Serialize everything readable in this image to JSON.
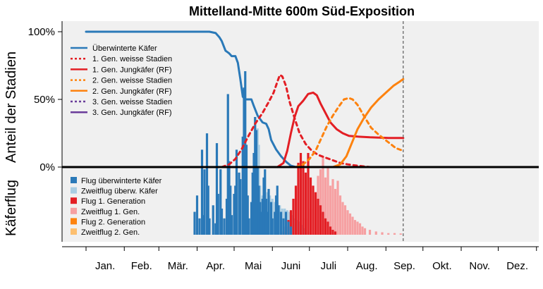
{
  "chart_data": {
    "type": "line",
    "title": "Mittelland-Mitte 600m Süd-Exposition",
    "colors": {
      "blue": "#2a79b8",
      "lightblue": "#a9cde2",
      "red": "#e31e24",
      "pink": "#f6a0a2",
      "orange": "#fd820e",
      "lightorange": "#fdbf6f",
      "purple": "#6a3d9a",
      "plotbg": "#f0f0f0",
      "vline": "#666666"
    },
    "months": [
      "Jan.",
      "Feb.",
      "Mär.",
      "Apr.",
      "Mai",
      "Juni",
      "Juli",
      "Aug.",
      "Sep.",
      "Okt.",
      "Nov.",
      "Dez."
    ],
    "upper": {
      "ylabel": "Anteil der Stadien",
      "yticks": [
        "100%",
        "50%",
        "0%"
      ],
      "ylim": [
        0,
        1.1
      ],
      "vline_day": 257,
      "series": [
        {
          "name": "Überwinterte Käfer",
          "color": "blue",
          "dash": false,
          "points": [
            [
              0,
              1
            ],
            [
              100,
              1
            ],
            [
              105,
              0.99
            ],
            [
              108,
              0.96
            ],
            [
              110,
              0.93
            ],
            [
              113,
              0.86
            ],
            [
              116,
              0.84
            ],
            [
              118,
              0.82
            ],
            [
              121,
              0.82
            ],
            [
              123,
              0.77
            ],
            [
              125,
              0.65
            ],
            [
              127,
              0.52
            ],
            [
              129,
              0.5
            ],
            [
              134,
              0.5
            ],
            [
              136,
              0.45
            ],
            [
              139,
              0.38
            ],
            [
              143,
              0.33
            ],
            [
              146,
              0.32
            ],
            [
              148,
              0.28
            ],
            [
              150,
              0.2
            ],
            [
              154,
              0.13
            ],
            [
              158,
              0.08
            ],
            [
              162,
              0.04
            ],
            [
              166,
              0.01
            ],
            [
              170,
              0
            ]
          ]
        },
        {
          "name": "1. Gen. weisse Stadien",
          "color": "red",
          "dash": true,
          "points": [
            [
              110,
              0
            ],
            [
              116,
              0.02
            ],
            [
              121,
              0.06
            ],
            [
              126,
              0.13
            ],
            [
              131,
              0.22
            ],
            [
              137,
              0.32
            ],
            [
              143,
              0.4
            ],
            [
              148,
              0.48
            ],
            [
              152,
              0.55
            ],
            [
              155,
              0.63
            ],
            [
              157,
              0.68
            ],
            [
              159,
              0.67
            ],
            [
              162,
              0.6
            ],
            [
              165,
              0.48
            ],
            [
              169,
              0.36
            ],
            [
              173,
              0.25
            ],
            [
              178,
              0.17
            ],
            [
              183,
              0.12
            ],
            [
              188,
              0.09
            ],
            [
              194,
              0.07
            ],
            [
              200,
              0.05
            ],
            [
              206,
              0.03
            ],
            [
              212,
              0.02
            ],
            [
              220,
              0.01
            ],
            [
              230,
              0
            ]
          ]
        },
        {
          "name": "1. Gen. Jungkäfer (RF)",
          "color": "red",
          "dash": false,
          "points": [
            [
              155,
              0
            ],
            [
              160,
              0.03
            ],
            [
              163,
              0.12
            ],
            [
              166,
              0.25
            ],
            [
              169,
              0.37
            ],
            [
              172,
              0.45
            ],
            [
              176,
              0.49
            ],
            [
              180,
              0.54
            ],
            [
              184,
              0.55
            ],
            [
              187,
              0.53
            ],
            [
              190,
              0.47
            ],
            [
              194,
              0.4
            ],
            [
              198,
              0.33
            ],
            [
              203,
              0.28
            ],
            [
              208,
              0.25
            ],
            [
              213,
              0.23
            ],
            [
              220,
              0.225
            ],
            [
              230,
              0.22
            ],
            [
              245,
              0.215
            ],
            [
              257,
              0.215
            ]
          ]
        },
        {
          "name": "2. Gen. weisse Stadien",
          "color": "orange",
          "dash": true,
          "points": [
            [
              170,
              0
            ],
            [
              176,
              0.02
            ],
            [
              181,
              0.06
            ],
            [
              186,
              0.12
            ],
            [
              190,
              0.2
            ],
            [
              195,
              0.3
            ],
            [
              200,
              0.38
            ],
            [
              205,
              0.45
            ],
            [
              209,
              0.5
            ],
            [
              213,
              0.51
            ],
            [
              216,
              0.5
            ],
            [
              220,
              0.46
            ],
            [
              225,
              0.38
            ],
            [
              231,
              0.29
            ],
            [
              237,
              0.24
            ],
            [
              244,
              0.19
            ],
            [
              251,
              0.14
            ],
            [
              257,
              0.12
            ]
          ]
        },
        {
          "name": "2. Gen. Jungkäfer (RF)",
          "color": "orange",
          "dash": false,
          "points": [
            [
              200,
              0
            ],
            [
              206,
              0.02
            ],
            [
              211,
              0.08
            ],
            [
              215,
              0.17
            ],
            [
              220,
              0.28
            ],
            [
              225,
              0.36
            ],
            [
              231,
              0.44
            ],
            [
              237,
              0.5
            ],
            [
              243,
              0.55
            ],
            [
              249,
              0.6
            ],
            [
              254,
              0.63
            ],
            [
              257,
              0.65
            ]
          ]
        },
        {
          "name": "3. Gen. weisse Stadien",
          "color": "purple",
          "dash": true,
          "points": []
        },
        {
          "name": "3. Gen. Jungkäfer (RF)",
          "color": "purple",
          "dash": false,
          "points": []
        }
      ]
    },
    "lower": {
      "ylabel": "Käferflug",
      "legend": [
        {
          "name": "Flug überwinterte Käfer",
          "color": "blue"
        },
        {
          "name": "Zweitflug überw. Käfer",
          "color": "lightblue"
        },
        {
          "name": "Flug 1. Generation",
          "color": "red"
        },
        {
          "name": "Zweitflug 1. Gen.",
          "color": "pink"
        },
        {
          "name": "Flug 2. Generation",
          "color": "orange"
        },
        {
          "name": "Zweitflug 2. Gen.",
          "color": "lightorange"
        }
      ],
      "flight_overwintered": [
        [
          88,
          0.14
        ],
        [
          90,
          0.24
        ],
        [
          92,
          0.1
        ],
        [
          94,
          0.52
        ],
        [
          95,
          0.12
        ],
        [
          96,
          0.4
        ],
        [
          98,
          0.62
        ],
        [
          99,
          0.3
        ],
        [
          100,
          0.1
        ],
        [
          103,
          0.18
        ],
        [
          105,
          0.07
        ],
        [
          106,
          0.56
        ],
        [
          107,
          0.25
        ],
        [
          109,
          0.4
        ],
        [
          110,
          0.16
        ],
        [
          112,
          0.1
        ],
        [
          114,
          0.22
        ],
        [
          115,
          0.86
        ],
        [
          116,
          0.45
        ],
        [
          117,
          0.3
        ],
        [
          118,
          0.12
        ],
        [
          120,
          0.25
        ],
        [
          121,
          0.3
        ],
        [
          122,
          0.52
        ],
        [
          124,
          0.38
        ],
        [
          125,
          0.34
        ],
        [
          127,
          0.6
        ],
        [
          128,
          0.9
        ],
        [
          129,
          1.0
        ],
        [
          130,
          0.55
        ],
        [
          131,
          0.24
        ],
        [
          132,
          0.1
        ],
        [
          134,
          0.2
        ],
        [
          135,
          0.38
        ],
        [
          136,
          0.5
        ],
        [
          137,
          0.72
        ],
        [
          138,
          0.64
        ],
        [
          139,
          0.42
        ],
        [
          140,
          0.3
        ],
        [
          141,
          0.2
        ],
        [
          142,
          0.14
        ],
        [
          143,
          0.22
        ],
        [
          144,
          0.35
        ],
        [
          145,
          0.4
        ],
        [
          146,
          0.22
        ],
        [
          147,
          0.14
        ],
        [
          148,
          0.28
        ],
        [
          150,
          0.2
        ],
        [
          151,
          0.1
        ],
        [
          153,
          0.14
        ],
        [
          154,
          0.24
        ],
        [
          155,
          0.3
        ],
        [
          156,
          0.18
        ],
        [
          158,
          0.14
        ],
        [
          160,
          0.1
        ],
        [
          162,
          0.14
        ],
        [
          164,
          0.08
        ],
        [
          166,
          0.05
        ]
      ],
      "flight_gen1": [
        [
          160,
          0.02
        ],
        [
          162,
          0.05
        ],
        [
          164,
          0.09
        ],
        [
          166,
          0.15
        ],
        [
          168,
          0.22
        ],
        [
          170,
          0.3
        ],
        [
          172,
          0.44
        ],
        [
          174,
          0.5
        ],
        [
          176,
          0.45
        ],
        [
          178,
          0.38
        ],
        [
          180,
          0.5
        ],
        [
          182,
          0.35
        ],
        [
          184,
          0.3
        ],
        [
          186,
          0.26
        ],
        [
          188,
          0.22
        ],
        [
          190,
          0.18
        ],
        [
          192,
          0.14
        ],
        [
          194,
          0.1
        ],
        [
          196,
          0.08
        ],
        [
          198,
          0.05
        ],
        [
          200,
          0.03
        ],
        [
          202,
          0.02
        ]
      ],
      "secondflight_overwintered": [
        [
          130,
          0.06
        ],
        [
          132,
          0.1
        ],
        [
          134,
          0.16
        ],
        [
          136,
          0.2
        ],
        [
          138,
          0.25
        ],
        [
          139,
          0.65
        ],
        [
          140,
          0.55
        ],
        [
          141,
          0.3
        ],
        [
          143,
          0.24
        ],
        [
          145,
          0.22
        ],
        [
          147,
          0.26
        ],
        [
          149,
          0.24
        ],
        [
          151,
          0.22
        ],
        [
          153,
          0.2
        ],
        [
          155,
          0.2
        ],
        [
          157,
          0.18
        ],
        [
          159,
          0.16
        ],
        [
          161,
          0.16
        ],
        [
          163,
          0.15
        ],
        [
          165,
          0.14
        ],
        [
          167,
          0.12
        ],
        [
          169,
          0.1
        ],
        [
          171,
          0.09
        ],
        [
          173,
          0.08
        ],
        [
          175,
          0.06
        ],
        [
          177,
          0.04
        ],
        [
          180,
          0.02
        ]
      ],
      "secondflight_gen1": [
        [
          170,
          0.02
        ],
        [
          174,
          0.06
        ],
        [
          178,
          0.1
        ],
        [
          182,
          0.16
        ],
        [
          186,
          0.24
        ],
        [
          188,
          0.36
        ],
        [
          190,
          0.4
        ],
        [
          192,
          0.48
        ],
        [
          194,
          0.35
        ],
        [
          196,
          0.42
        ],
        [
          198,
          0.3
        ],
        [
          200,
          0.34
        ],
        [
          202,
          0.28
        ],
        [
          204,
          0.33
        ],
        [
          206,
          0.24
        ],
        [
          208,
          0.2
        ],
        [
          210,
          0.18
        ],
        [
          212,
          0.15
        ],
        [
          214,
          0.13
        ],
        [
          216,
          0.11
        ],
        [
          218,
          0.09
        ],
        [
          220,
          0.08
        ],
        [
          222,
          0.07
        ],
        [
          224,
          0.05
        ],
        [
          226,
          0.04
        ],
        [
          230,
          0.03
        ],
        [
          235,
          0.02
        ],
        [
          240,
          0.015
        ],
        [
          245,
          0.01
        ],
        [
          250,
          0.01
        ],
        [
          255,
          0.008
        ]
      ]
    }
  }
}
